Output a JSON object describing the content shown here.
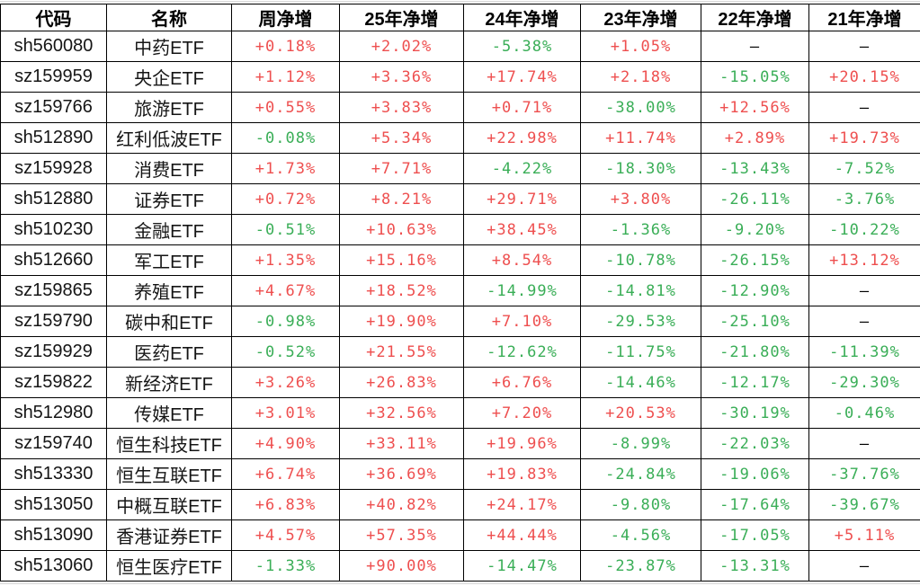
{
  "colors": {
    "up": "#ee4f4f",
    "down": "#3aae57",
    "neutral": "#000000",
    "border": "#000000",
    "gridline": "#d6d6d6"
  },
  "chart_data": {
    "type": "table",
    "title": "ETF net increase table",
    "columns": [
      "代码",
      "名称",
      "周净增",
      "25年净增",
      "24年净增",
      "23年净增",
      "22年净增",
      "21年净增"
    ],
    "rows": [
      [
        "sh560080",
        "中药ETF",
        "+0.18%",
        "+2.02%",
        "-5.38%",
        "+1.05%",
        "—",
        "—"
      ],
      [
        "sz159959",
        "央企ETF",
        "+1.12%",
        "+3.36%",
        "+17.74%",
        "+2.18%",
        "-15.05%",
        "+20.15%"
      ],
      [
        "sz159766",
        "旅游ETF",
        "+0.55%",
        "+3.83%",
        "+0.71%",
        "-38.00%",
        "+12.56%",
        "—"
      ],
      [
        "sh512890",
        "红利低波ETF",
        "-0.08%",
        "+5.34%",
        "+22.98%",
        "+11.74%",
        "+2.89%",
        "+19.73%"
      ],
      [
        "sz159928",
        "消费ETF",
        "+1.73%",
        "+7.71%",
        "-4.22%",
        "-18.30%",
        "-13.43%",
        "-7.52%"
      ],
      [
        "sh512880",
        "证券ETF",
        "+0.72%",
        "+8.21%",
        "+29.71%",
        "+3.80%",
        "-26.11%",
        "-3.76%"
      ],
      [
        "sh510230",
        "金融ETF",
        "-0.51%",
        "+10.63%",
        "+38.45%",
        "-1.36%",
        "-9.20%",
        "-10.22%"
      ],
      [
        "sh512660",
        "军工ETF",
        "+1.35%",
        "+15.16%",
        "+8.54%",
        "-10.78%",
        "-26.15%",
        "+13.12%"
      ],
      [
        "sz159865",
        "养殖ETF",
        "+4.67%",
        "+18.52%",
        "-14.99%",
        "-14.81%",
        "-12.90%",
        "—"
      ],
      [
        "sz159790",
        "碳中和ETF",
        "-0.98%",
        "+19.90%",
        "+7.10%",
        "-29.53%",
        "-25.10%",
        "—"
      ],
      [
        "sz159929",
        "医药ETF",
        "-0.52%",
        "+21.55%",
        "-12.62%",
        "-11.75%",
        "-21.80%",
        "-11.39%"
      ],
      [
        "sz159822",
        "新经济ETF",
        "+3.26%",
        "+26.83%",
        "+6.76%",
        "-14.46%",
        "-12.17%",
        "-29.30%"
      ],
      [
        "sh512980",
        "传媒ETF",
        "+3.01%",
        "+32.56%",
        "+7.20%",
        "+20.53%",
        "-30.19%",
        "-0.46%"
      ],
      [
        "sz159740",
        "恒生科技ETF",
        "+4.90%",
        "+33.11%",
        "+19.96%",
        "-8.99%",
        "-22.03%",
        "—"
      ],
      [
        "sh513330",
        "恒生互联ETF",
        "+6.74%",
        "+36.69%",
        "+19.83%",
        "-24.84%",
        "-19.06%",
        "-37.76%"
      ],
      [
        "sh513050",
        "中概互联ETF",
        "+6.83%",
        "+40.82%",
        "+24.17%",
        "-9.80%",
        "-17.64%",
        "-39.67%"
      ],
      [
        "sh513090",
        "香港证券ETF",
        "+4.57%",
        "+57.35%",
        "+44.44%",
        "-4.56%",
        "-17.05%",
        "+5.11%"
      ],
      [
        "sh513060",
        "恒生医疗ETF",
        "-1.33%",
        "+90.00%",
        "-14.47%",
        "-23.87%",
        "-13.31%",
        "—"
      ]
    ]
  }
}
